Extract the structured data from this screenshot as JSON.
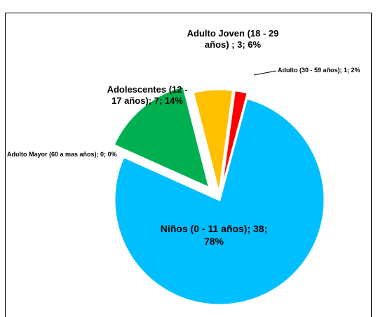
{
  "chart_data": {
    "type": "pie",
    "title": "",
    "exploded": true,
    "slices": [
      {
        "label": "Niños (0 - 11 años)",
        "value": 38,
        "percent": "78%",
        "color": "#00BFFF",
        "label_text": "Niños (0 - 11 años); 38;\n78%"
      },
      {
        "label": "Adolescentes (12 - 17 años)",
        "value": 7,
        "percent": "14%",
        "color": "#00B050",
        "label_text": "Adolescentes  (12 -\n17 años); 7; 14%"
      },
      {
        "label": "Adulto Joven (18 - 29 años)",
        "value": 3,
        "percent": "6%",
        "color": "#FFC000",
        "label_text": "Adulto Joven (18 - 29\naños) ; 3; 6%"
      },
      {
        "label": "Adulto (30 - 59 años)",
        "value": 1,
        "percent": "2%",
        "color": "#FF0000",
        "label_text": "Adulto (30 - 59 años); 1; 2%"
      },
      {
        "label": "Adulto Mayor (60 a mas años)",
        "value": 0,
        "percent": "0%",
        "color": "#7F7F7F",
        "label_text": "Adulto Mayor (60 a mas años); 0; 0%"
      }
    ]
  }
}
